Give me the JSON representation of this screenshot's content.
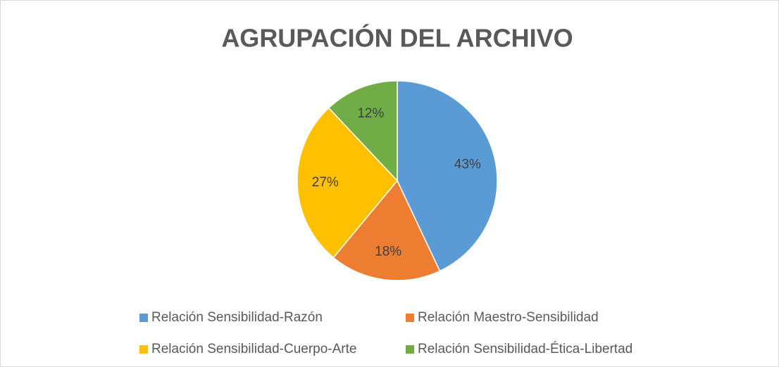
{
  "chart_data": {
    "type": "pie",
    "title": "AGRUPACIÓN DEL ARCHIVO",
    "categories": [
      "Relación Sensibilidad-Razón",
      "Relación Maestro-Sensibilidad",
      "Relación Sensibilidad-Cuerpo-Arte",
      "Relación Sensibilidad-Ética-Libertad"
    ],
    "values": [
      43,
      18,
      27,
      12
    ],
    "value_labels": [
      "43%",
      "18%",
      "27%",
      "12%"
    ],
    "colors": [
      "#5b9bd5",
      "#ed7d31",
      "#ffc000",
      "#70ad47"
    ],
    "legend": "bottom"
  }
}
